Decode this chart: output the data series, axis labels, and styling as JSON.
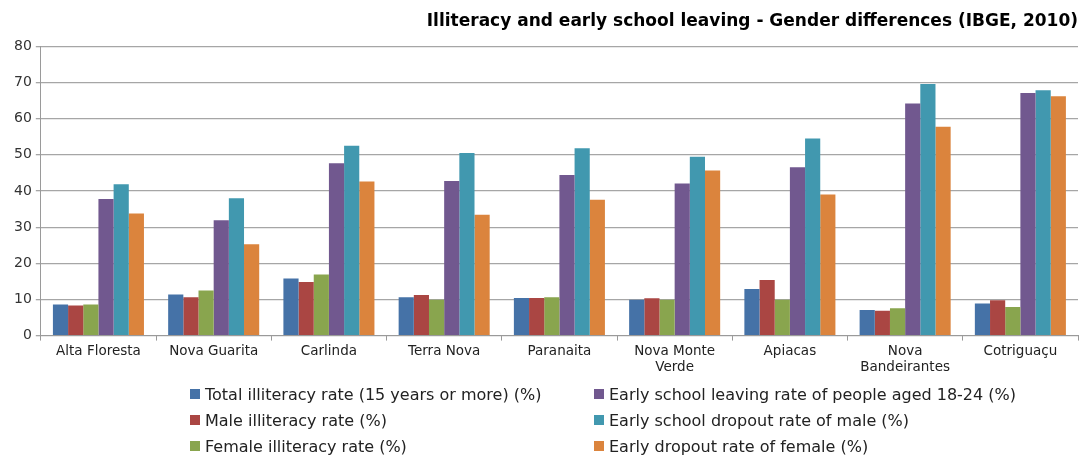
{
  "chart_data": {
    "type": "bar",
    "title": "Illiteracy and early school leaving - Gender differences (IBGE, 2010)",
    "categories": [
      "Alta Floresta",
      "Nova Guarita",
      "Carlinda",
      "Terra Nova",
      "Paranaita",
      "Nova Monte Verde",
      "Apiacas",
      "Nova Bandeirantes",
      "Cotriguaçu"
    ],
    "series": [
      {
        "name": "Total illiteracy rate (15 years or more) (%)",
        "color": "#4572a7",
        "values": [
          8.6,
          11.4,
          15.8,
          10.6,
          10.4,
          9.9,
          12.9,
          7.1,
          8.9
        ]
      },
      {
        "name": "Male illiteracy rate (%)",
        "color": "#aa4643",
        "values": [
          8.3,
          10.6,
          14.8,
          11.2,
          10.4,
          10.3,
          15.4,
          6.9,
          9.8
        ]
      },
      {
        "name": "Female illiteracy rate (%)",
        "color": "#89a54e",
        "values": [
          8.6,
          12.5,
          16.9,
          9.9,
          10.6,
          9.9,
          9.9,
          7.6,
          7.9
        ]
      },
      {
        "name": "Early school leaving rate of people aged 18-24 (%)",
        "color": "#71588f",
        "values": [
          37.8,
          31.9,
          47.7,
          42.8,
          44.4,
          42.1,
          46.6,
          64.2,
          67.1
        ]
      },
      {
        "name": "Early school dropout rate of male (%)",
        "color": "#4198af",
        "values": [
          41.9,
          38.0,
          52.5,
          50.5,
          51.8,
          49.5,
          54.5,
          69.6,
          67.9
        ]
      },
      {
        "name": "Early dropout rate of female (%)",
        "color": "#db843d",
        "values": [
          33.8,
          25.3,
          42.6,
          33.4,
          37.6,
          45.7,
          39.0,
          57.8,
          66.2
        ]
      }
    ],
    "ylim": [
      0,
      80
    ],
    "yticks": [
      0,
      10,
      20,
      30,
      40,
      50,
      60,
      70,
      80
    ],
    "grid": "y",
    "legend": "bottom"
  }
}
